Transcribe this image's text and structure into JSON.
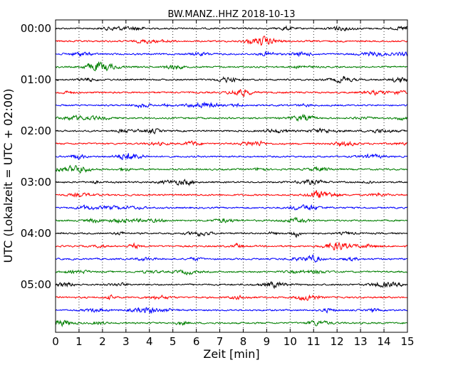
{
  "chart_data": {
    "type": "line",
    "title": "BW.MANZ..HHZ 2018-10-13",
    "xlabel": "Zeit  [min]",
    "ylabel": "UTC (Lokalzeit = UTC + 02:00)",
    "xlim": [
      0,
      15
    ],
    "xticks": [
      "0",
      "1",
      "2",
      "3",
      "4",
      "5",
      "6",
      "7",
      "8",
      "9",
      "10",
      "11",
      "12",
      "13",
      "14",
      "15"
    ],
    "yticks": [
      {
        "label": "00:00",
        "row": 0
      },
      {
        "label": "01:00",
        "row": 4
      },
      {
        "label": "02:00",
        "row": 8
      },
      {
        "label": "03:00",
        "row": 12
      },
      {
        "label": "04:00",
        "row": 16
      },
      {
        "label": "05:00",
        "row": 20
      }
    ],
    "grid": "x-dotted",
    "trace_minutes_per_row": 15,
    "trace_count": 24,
    "trace_colors": [
      "#000000",
      "#ff0000",
      "#0000ff",
      "#007f00"
    ]
  }
}
